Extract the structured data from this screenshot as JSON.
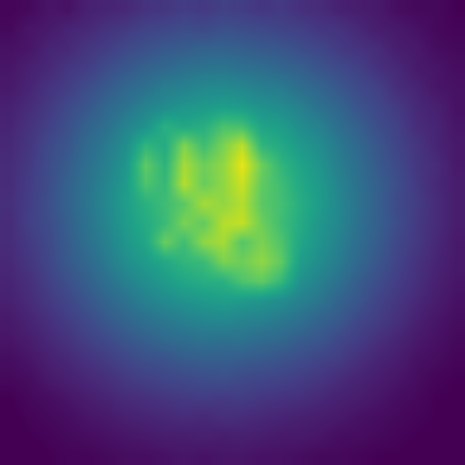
{
  "chart_data": {
    "type": "heatmap",
    "tick_labels": false,
    "zlim": [
      0.1,
      1
    ],
    "z": [
      [
        0.11,
        0.12,
        0.15,
        0.14,
        0.18,
        0.19,
        0.2,
        0.23,
        0.24,
        0.26,
        0.25,
        0.27,
        0.26,
        0.24,
        0.25,
        0.22,
        0.21,
        0.18,
        0.17,
        0.16,
        0.13,
        0.12,
        0.12,
        0.1
      ],
      [
        0.12,
        0.15,
        0.16,
        0.19,
        0.2,
        0.23,
        0.25,
        0.28,
        0.29,
        0.31,
        0.3,
        0.32,
        0.31,
        0.3,
        0.28,
        0.27,
        0.24,
        0.23,
        0.2,
        0.17,
        0.16,
        0.14,
        0.12,
        0.11
      ],
      [
        0.14,
        0.15,
        0.19,
        0.2,
        0.24,
        0.26,
        0.3,
        0.32,
        0.35,
        0.36,
        0.38,
        0.38,
        0.37,
        0.35,
        0.34,
        0.31,
        0.29,
        0.25,
        0.23,
        0.21,
        0.17,
        0.16,
        0.13,
        0.12
      ],
      [
        0.15,
        0.18,
        0.2,
        0.24,
        0.26,
        0.31,
        0.34,
        0.38,
        0.4,
        0.43,
        0.44,
        0.45,
        0.43,
        0.42,
        0.39,
        0.37,
        0.33,
        0.3,
        0.27,
        0.22,
        0.2,
        0.16,
        0.15,
        0.13
      ],
      [
        0.16,
        0.19,
        0.23,
        0.26,
        0.31,
        0.35,
        0.4,
        0.43,
        0.48,
        0.49,
        0.52,
        0.52,
        0.51,
        0.48,
        0.47,
        0.42,
        0.39,
        0.34,
        0.3,
        0.27,
        0.21,
        0.19,
        0.15,
        0.14
      ],
      [
        0.18,
        0.21,
        0.25,
        0.3,
        0.34,
        0.4,
        0.44,
        0.5,
        0.53,
        0.57,
        0.58,
        0.6,
        0.59,
        0.55,
        0.53,
        0.49,
        0.43,
        0.39,
        0.33,
        0.29,
        0.25,
        0.2,
        0.18,
        0.14
      ],
      [
        0.19,
        0.23,
        0.27,
        0.32,
        0.38,
        0.43,
        0.5,
        0.55,
        0.67,
        0.63,
        0.66,
        0.74,
        0.73,
        0.62,
        0.59,
        0.53,
        0.49,
        0.42,
        0.37,
        0.31,
        0.27,
        0.21,
        0.19,
        0.15
      ],
      [
        0.2,
        0.24,
        0.3,
        0.34,
        0.41,
        0.47,
        0.54,
        0.69,
        0.65,
        0.83,
        0.72,
        0.82,
        0.91,
        0.69,
        0.64,
        0.58,
        0.53,
        0.46,
        0.4,
        0.34,
        0.28,
        0.24,
        0.19,
        0.16
      ],
      [
        0.21,
        0.25,
        0.31,
        0.36,
        0.43,
        0.49,
        0.57,
        0.78,
        0.68,
        0.88,
        0.8,
        0.85,
        0.97,
        0.8,
        0.69,
        0.62,
        0.56,
        0.48,
        0.42,
        0.35,
        0.3,
        0.24,
        0.21,
        0.16
      ],
      [
        0.21,
        0.26,
        0.31,
        0.38,
        0.44,
        0.51,
        0.59,
        0.75,
        0.7,
        0.9,
        0.79,
        0.85,
        0.93,
        0.78,
        0.72,
        0.64,
        0.58,
        0.5,
        0.43,
        0.37,
        0.31,
        0.25,
        0.2,
        0.17
      ],
      [
        0.22,
        0.26,
        0.32,
        0.38,
        0.45,
        0.52,
        0.6,
        0.67,
        0.72,
        0.77,
        0.88,
        0.85,
        0.9,
        0.77,
        0.73,
        0.66,
        0.59,
        0.51,
        0.44,
        0.37,
        0.3,
        0.26,
        0.21,
        0.17
      ],
      [
        0.21,
        0.27,
        0.31,
        0.37,
        0.44,
        0.51,
        0.59,
        0.65,
        0.71,
        0.82,
        0.78,
        0.9,
        0.92,
        0.8,
        0.72,
        0.65,
        0.57,
        0.51,
        0.43,
        0.37,
        0.31,
        0.25,
        0.21,
        0.17
      ],
      [
        0.21,
        0.25,
        0.3,
        0.36,
        0.43,
        0.49,
        0.57,
        0.63,
        0.8,
        0.72,
        0.85,
        0.88,
        0.76,
        0.82,
        0.75,
        0.63,
        0.56,
        0.49,
        0.42,
        0.36,
        0.29,
        0.25,
        0.2,
        0.16
      ],
      [
        0.2,
        0.24,
        0.29,
        0.35,
        0.4,
        0.47,
        0.54,
        0.59,
        0.64,
        0.69,
        0.71,
        0.82,
        0.8,
        0.85,
        0.78,
        0.6,
        0.53,
        0.47,
        0.4,
        0.34,
        0.28,
        0.23,
        0.19,
        0.16
      ],
      [
        0.19,
        0.22,
        0.27,
        0.32,
        0.37,
        0.43,
        0.49,
        0.54,
        0.59,
        0.63,
        0.66,
        0.67,
        0.75,
        0.78,
        0.7,
        0.55,
        0.49,
        0.43,
        0.36,
        0.31,
        0.26,
        0.22,
        0.18,
        0.15
      ],
      [
        0.18,
        0.21,
        0.25,
        0.29,
        0.34,
        0.39,
        0.44,
        0.49,
        0.53,
        0.56,
        0.58,
        0.6,
        0.59,
        0.57,
        0.54,
        0.49,
        0.45,
        0.38,
        0.34,
        0.28,
        0.24,
        0.2,
        0.17,
        0.14
      ],
      [
        0.16,
        0.19,
        0.22,
        0.26,
        0.3,
        0.35,
        0.39,
        0.43,
        0.46,
        0.49,
        0.51,
        0.52,
        0.5,
        0.49,
        0.46,
        0.43,
        0.38,
        0.35,
        0.29,
        0.26,
        0.22,
        0.18,
        0.15,
        0.13
      ],
      [
        0.15,
        0.17,
        0.2,
        0.23,
        0.27,
        0.3,
        0.34,
        0.37,
        0.41,
        0.42,
        0.44,
        0.43,
        0.44,
        0.41,
        0.4,
        0.36,
        0.34,
        0.29,
        0.26,
        0.22,
        0.19,
        0.16,
        0.14,
        0.12
      ],
      [
        0.13,
        0.15,
        0.18,
        0.2,
        0.23,
        0.26,
        0.29,
        0.32,
        0.33,
        0.36,
        0.37,
        0.37,
        0.36,
        0.35,
        0.33,
        0.31,
        0.28,
        0.26,
        0.22,
        0.19,
        0.17,
        0.14,
        0.13,
        0.11
      ],
      [
        0.12,
        0.13,
        0.16,
        0.18,
        0.2,
        0.22,
        0.25,
        0.27,
        0.29,
        0.3,
        0.31,
        0.32,
        0.3,
        0.29,
        0.28,
        0.26,
        0.24,
        0.21,
        0.19,
        0.17,
        0.15,
        0.13,
        0.11,
        0.1
      ],
      [
        0.1,
        0.12,
        0.13,
        0.15,
        0.17,
        0.19,
        0.21,
        0.22,
        0.24,
        0.25,
        0.26,
        0.25,
        0.26,
        0.24,
        0.23,
        0.22,
        0.2,
        0.18,
        0.17,
        0.15,
        0.13,
        0.12,
        0.1,
        0.1
      ],
      [
        0.09,
        0.11,
        0.12,
        0.13,
        0.15,
        0.16,
        0.18,
        0.19,
        0.2,
        0.21,
        0.2,
        0.22,
        0.21,
        0.2,
        0.19,
        0.18,
        0.17,
        0.16,
        0.14,
        0.13,
        0.12,
        0.11,
        0.1,
        0.1
      ],
      [
        0.08,
        0.1,
        0.11,
        0.12,
        0.13,
        0.14,
        0.15,
        0.16,
        0.17,
        0.17,
        0.18,
        0.17,
        0.18,
        0.17,
        0.16,
        0.16,
        0.15,
        0.13,
        0.13,
        0.12,
        0.11,
        0.1,
        0.09,
        0.09
      ],
      [
        0.07,
        0.08,
        0.1,
        0.11,
        0.11,
        0.12,
        0.13,
        0.13,
        0.14,
        0.15,
        0.14,
        0.15,
        0.15,
        0.14,
        0.14,
        0.13,
        0.12,
        0.12,
        0.11,
        0.1,
        0.1,
        0.09,
        0.08,
        0.08
      ]
    ]
  }
}
